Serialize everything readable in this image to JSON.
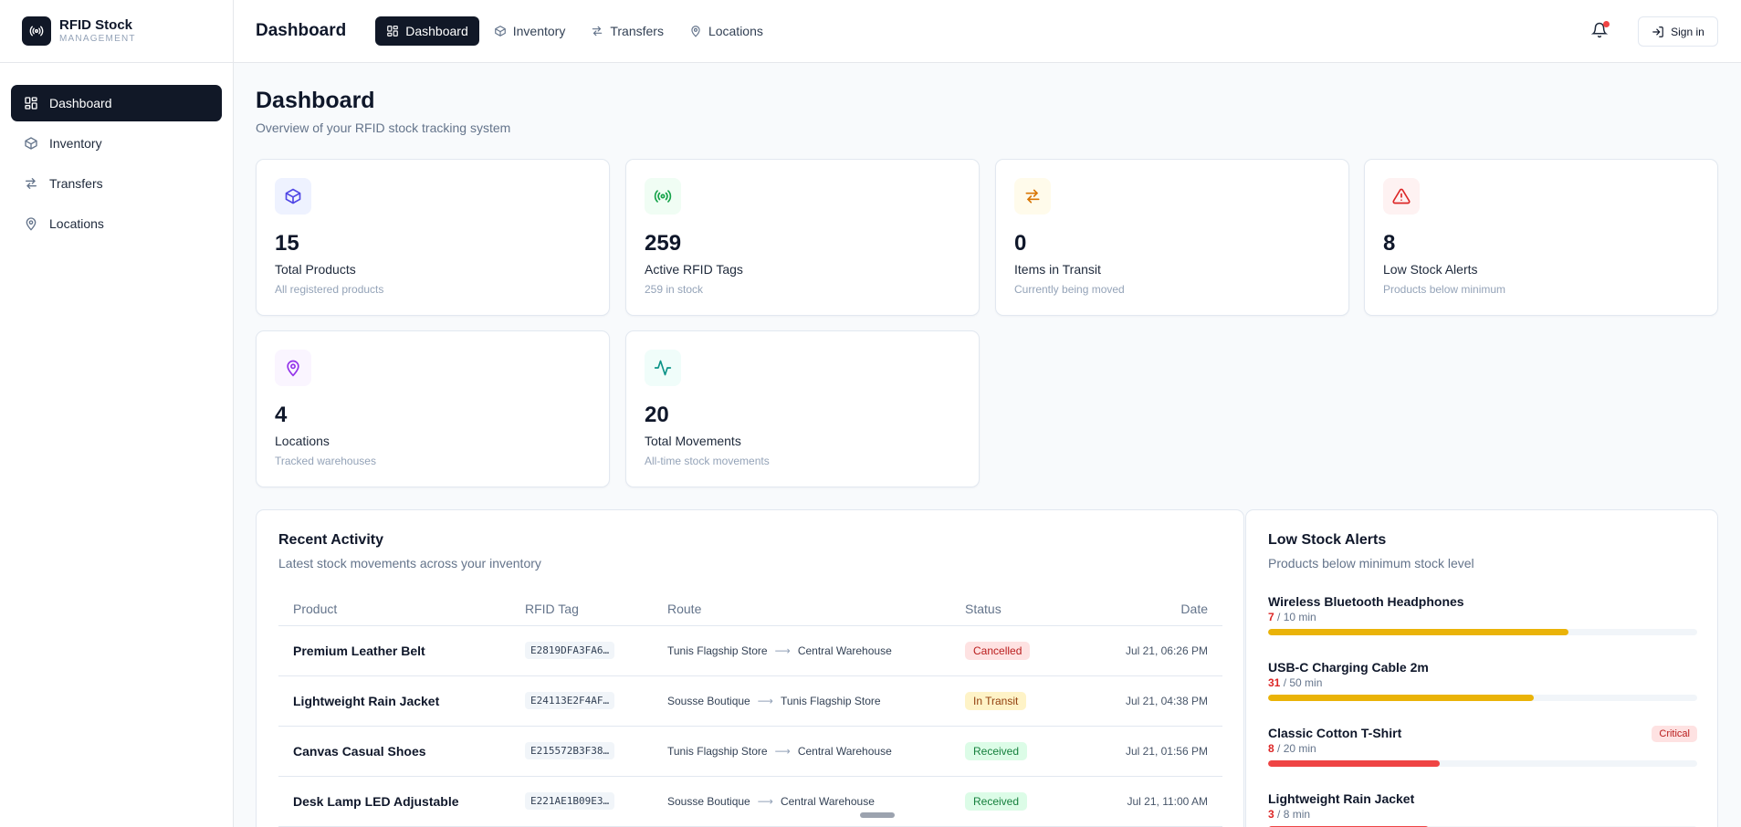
{
  "brand": {
    "name": "RFID Stock",
    "subtitle": "MANAGEMENT"
  },
  "sidebar": {
    "items": [
      {
        "label": "Dashboard",
        "icon": "grid-icon",
        "active": true
      },
      {
        "label": "Inventory",
        "icon": "box-icon",
        "active": false
      },
      {
        "label": "Transfers",
        "icon": "arrows-icon",
        "active": false
      },
      {
        "label": "Locations",
        "icon": "map-pin-icon",
        "active": false
      }
    ]
  },
  "header": {
    "title": "Dashboard",
    "tabs": [
      {
        "label": "Dashboard",
        "active": true
      },
      {
        "label": "Inventory",
        "active": false
      },
      {
        "label": "Transfers",
        "active": false
      },
      {
        "label": "Locations",
        "active": false
      }
    ],
    "signin_label": "Sign in"
  },
  "page": {
    "title": "Dashboard",
    "subtitle": "Overview of your RFID stock tracking system"
  },
  "stats": [
    {
      "value": "15",
      "label": "Total Products",
      "sub": "All registered products",
      "icon": "box-icon",
      "color": "#4f46e5",
      "bg": "#eef2ff"
    },
    {
      "value": "259",
      "label": "Active RFID Tags",
      "sub": "259 in stock",
      "icon": "radio-icon",
      "color": "#16a34a",
      "bg": "#f0fdf4"
    },
    {
      "value": "0",
      "label": "Items in Transit",
      "sub": "Currently being moved",
      "icon": "arrows-icon",
      "color": "#d97706",
      "bg": "#fffbeb"
    },
    {
      "value": "8",
      "label": "Low Stock Alerts",
      "sub": "Products below minimum",
      "icon": "alert-triangle-icon",
      "color": "#dc2626",
      "bg": "#fef2f2"
    },
    {
      "value": "4",
      "label": "Locations",
      "sub": "Tracked warehouses",
      "icon": "map-pin-icon",
      "color": "#9333ea",
      "bg": "#faf5ff"
    },
    {
      "value": "20",
      "label": "Total Movements",
      "sub": "All-time stock movements",
      "icon": "activity-icon",
      "color": "#0d9488",
      "bg": "#f0fdfa"
    }
  ],
  "recent": {
    "title": "Recent Activity",
    "subtitle": "Latest stock movements across your inventory",
    "columns": [
      "Product",
      "RFID Tag",
      "Route",
      "Status",
      "Date"
    ],
    "rows": [
      {
        "product": "Premium Leather Belt",
        "tag": "E2819DFA3FA6…",
        "from": "Tunis Flagship Store",
        "to": "Central Warehouse",
        "status": "Cancelled",
        "date": "Jul 21, 06:26 PM"
      },
      {
        "product": "Lightweight Rain Jacket",
        "tag": "E24113E2F4AF…",
        "from": "Sousse Boutique",
        "to": "Tunis Flagship Store",
        "status": "In Transit",
        "date": "Jul 21, 04:38 PM"
      },
      {
        "product": "Canvas Casual Shoes",
        "tag": "E215572B3F38…",
        "from": "Tunis Flagship Store",
        "to": "Central Warehouse",
        "status": "Received",
        "date": "Jul 21, 01:56 PM"
      },
      {
        "product": "Desk Lamp LED Adjustable",
        "tag": "E221AE1B09E3…",
        "from": "Sousse Boutique",
        "to": "Central Warehouse",
        "status": "Received",
        "date": "Jul 21, 11:00 AM"
      }
    ],
    "status_colors": {
      "Cancelled": {
        "fg": "#b91c1c",
        "bg": "#fee2e2"
      },
      "In Transit": {
        "fg": "#92400e",
        "bg": "#fef3c7"
      },
      "Received": {
        "fg": "#15803d",
        "bg": "#dcfce7"
      }
    }
  },
  "low_stock": {
    "title": "Low Stock Alerts",
    "subtitle": "Products below minimum stock level",
    "items": [
      {
        "name": "Wireless Bluetooth Headphones",
        "current": "7",
        "min_text": " / 10 min",
        "fraction": 0.7,
        "color": "#eab308",
        "critical": ""
      },
      {
        "name": "USB-C Charging Cable 2m",
        "current": "31",
        "min_text": " / 50 min",
        "fraction": 0.62,
        "color": "#eab308",
        "critical": ""
      },
      {
        "name": "Classic Cotton T-Shirt",
        "current": "8",
        "min_text": " / 20 min",
        "fraction": 0.4,
        "color": "#ef4444",
        "critical": "Critical"
      },
      {
        "name": "Lightweight Rain Jacket",
        "current": "3",
        "min_text": " / 8 min",
        "fraction": 0.375,
        "color": "#ef4444",
        "critical": ""
      }
    ]
  }
}
